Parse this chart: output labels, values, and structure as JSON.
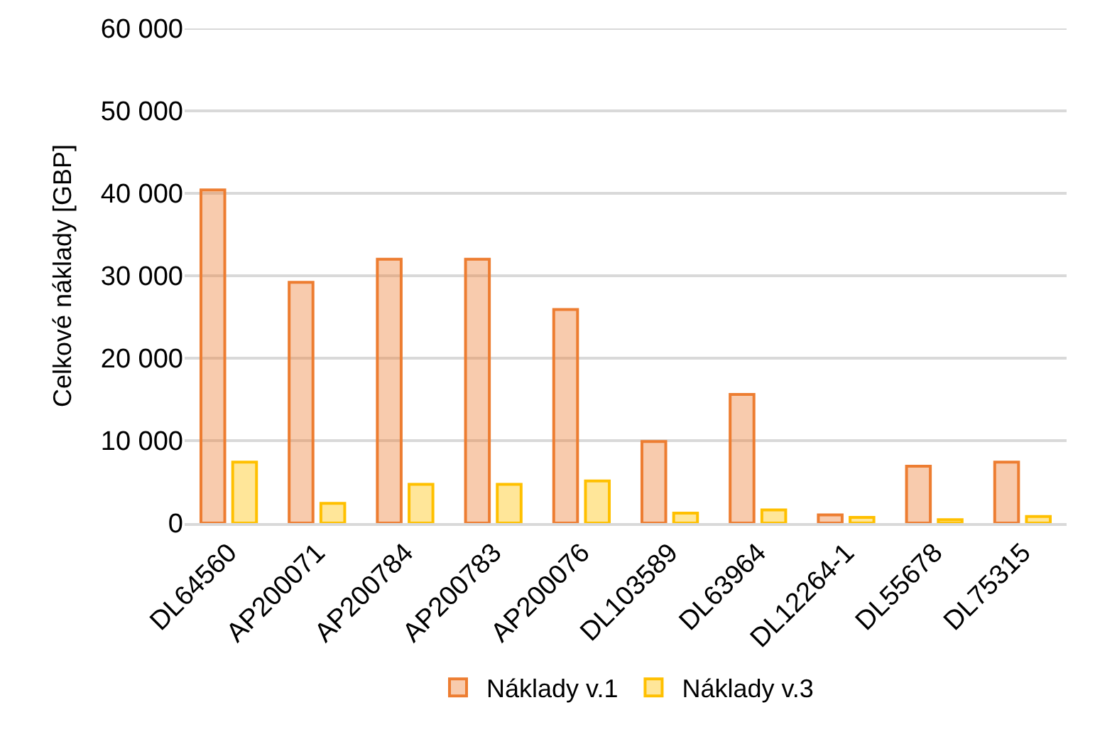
{
  "chart_data": {
    "type": "bar",
    "ylabel": "Celkové náklady [GBP]",
    "categories": [
      "DL64560",
      "AP200071",
      "AP200784",
      "AP200783",
      "AP200076",
      "DL103589",
      "DL63964",
      "DL12264-1",
      "DL55678",
      "DL75315"
    ],
    "series": [
      {
        "name": "Náklady v.1",
        "color": "#ed7d31",
        "values": [
          40400,
          29200,
          32000,
          32000,
          25900,
          9900,
          15600,
          1000,
          6900,
          7400
        ]
      },
      {
        "name": "Náklady v.3",
        "color": "#ffc000",
        "values": [
          7400,
          2400,
          4700,
          4700,
          5100,
          1200,
          1600,
          700,
          400,
          800
        ]
      }
    ],
    "ylim": [
      0,
      60000
    ],
    "yticks": [
      {
        "value": 0,
        "label": "0"
      },
      {
        "value": 10000,
        "label": "10 000"
      },
      {
        "value": 20000,
        "label": "20 000"
      },
      {
        "value": 30000,
        "label": "30 000"
      },
      {
        "value": 40000,
        "label": "40 000"
      },
      {
        "value": 50000,
        "label": "50 000"
      },
      {
        "value": 60000,
        "label": "60 000"
      }
    ],
    "grid": "y",
    "legend": "bottom"
  }
}
